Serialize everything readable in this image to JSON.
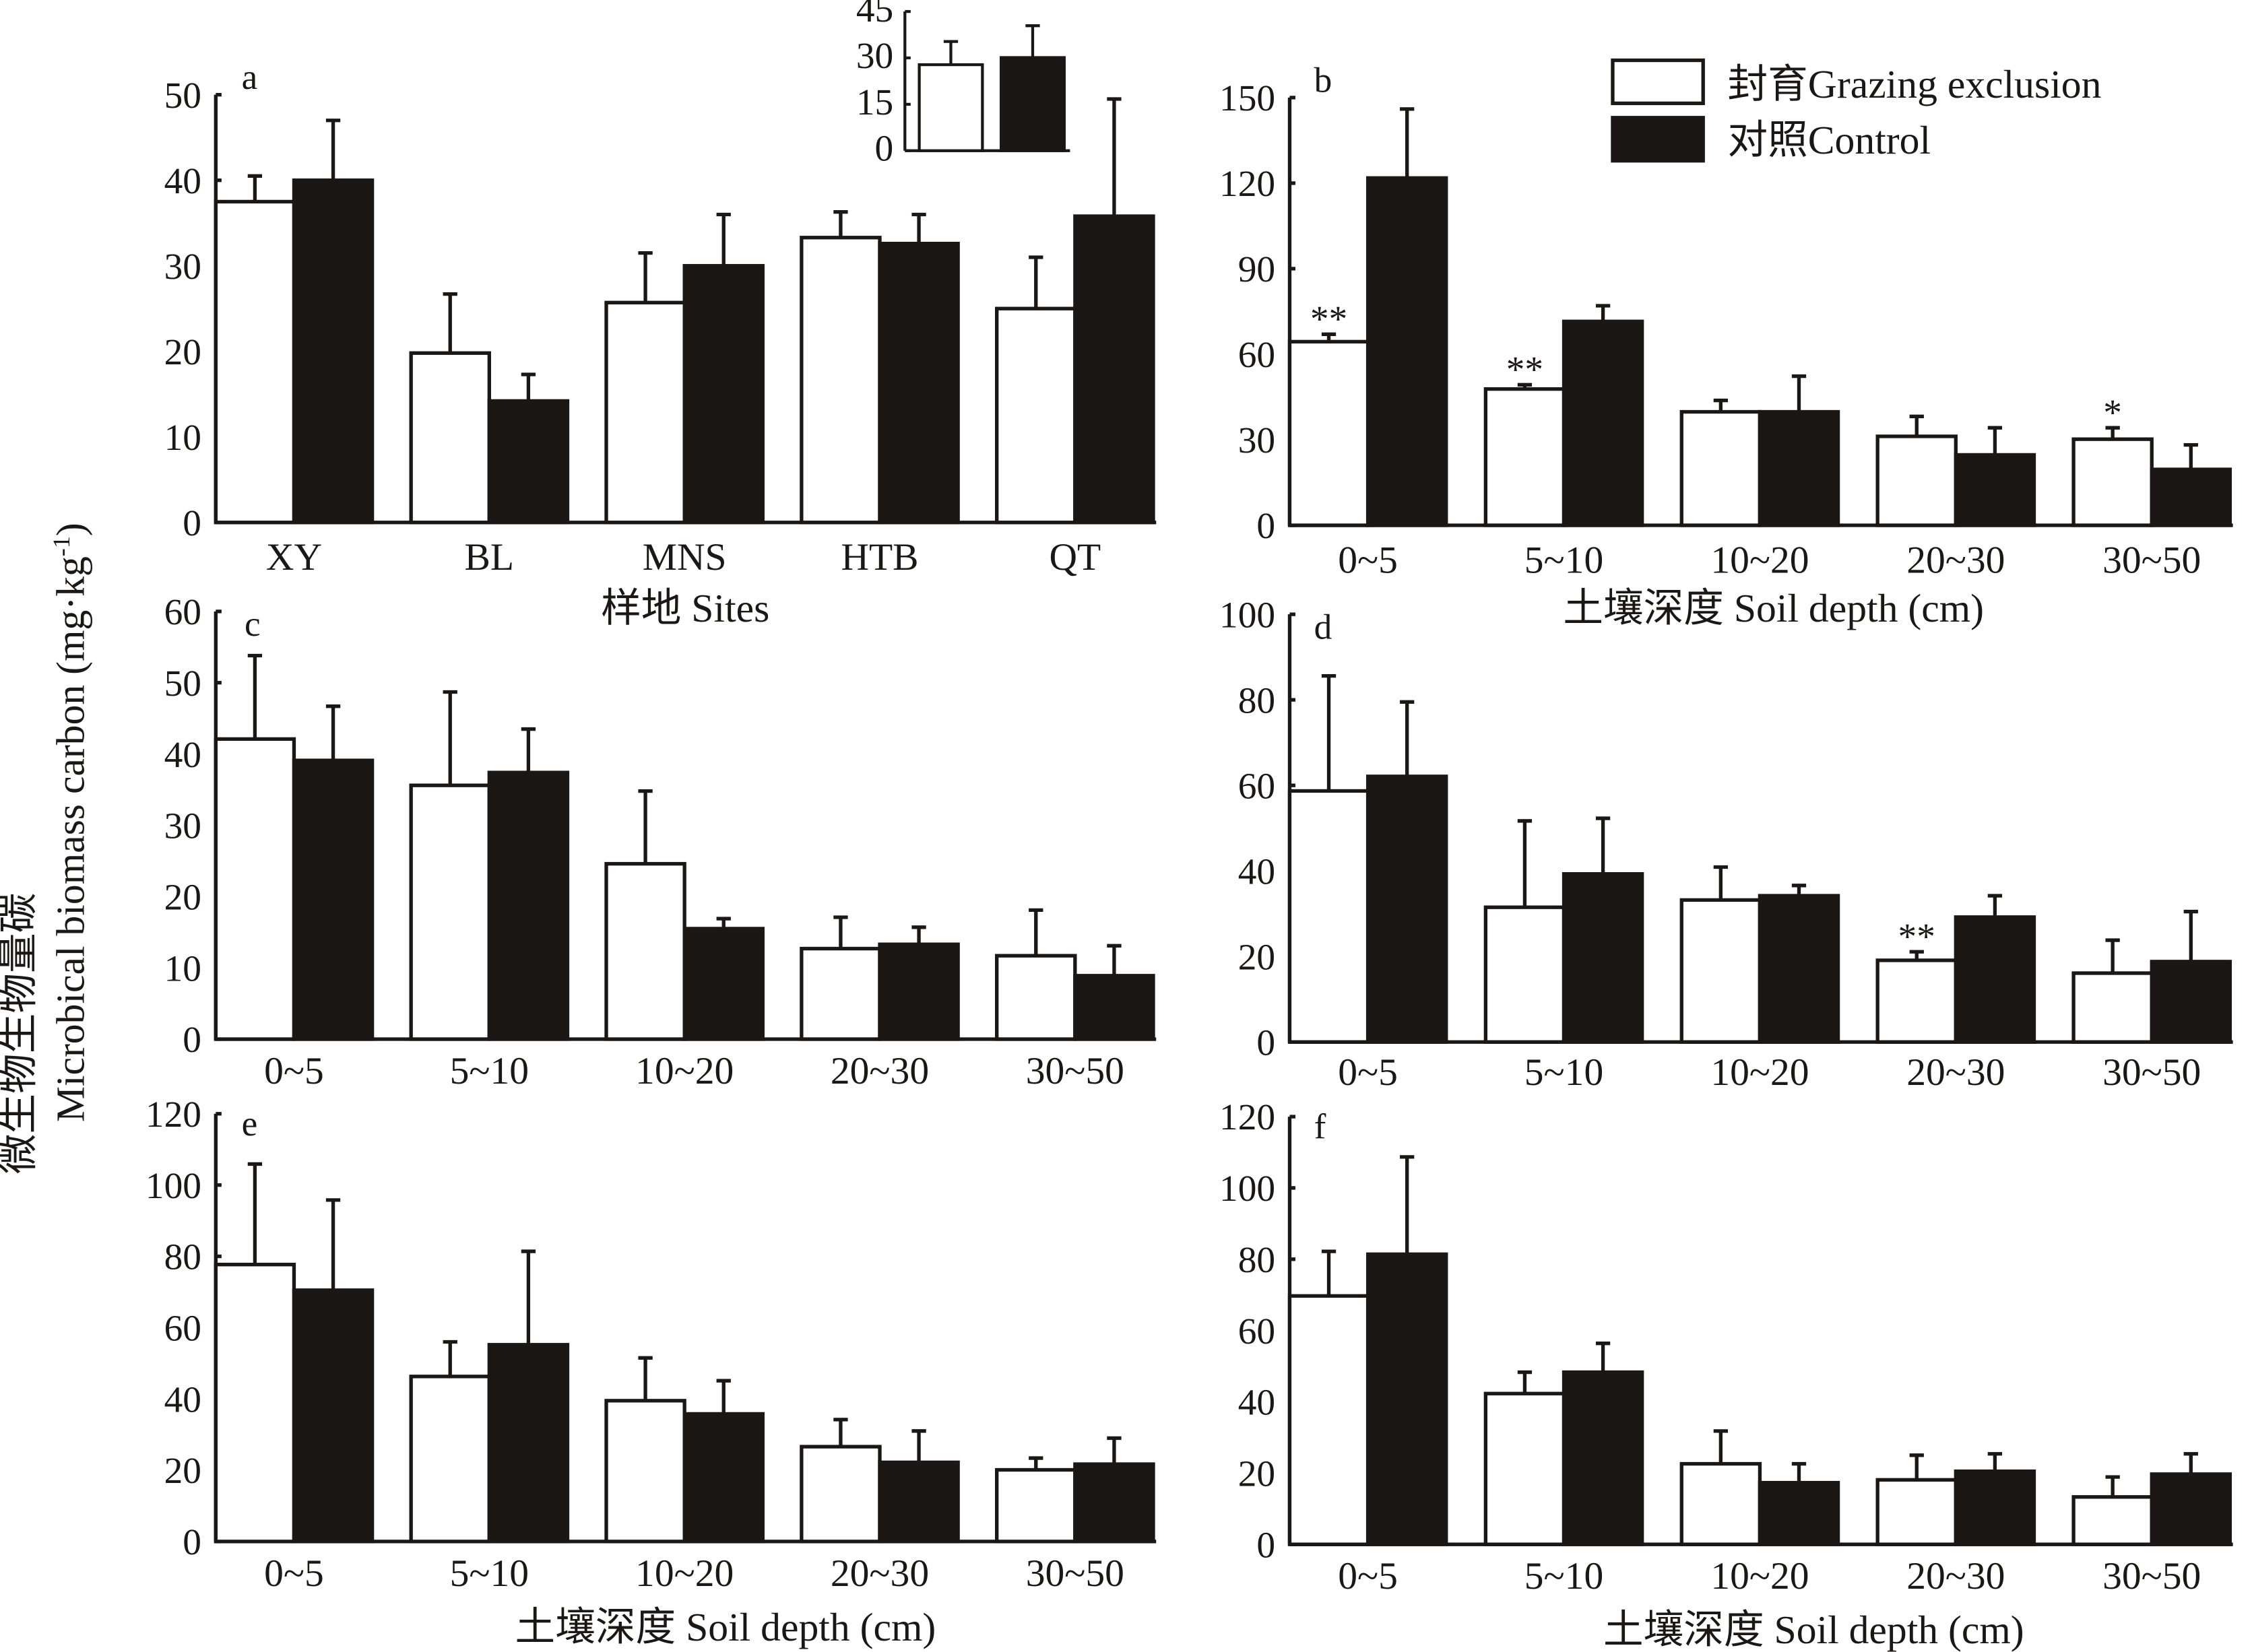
{
  "colors": {
    "grazing_exclusion": "#ffffff",
    "control": "#1a1714",
    "axis": "#1a1714"
  },
  "y_axis_title_cn": "微生物生物量碳",
  "y_axis_title_en": "Microbical biomass carbon (mg·kg",
  "y_axis_title_sup": "-1",
  "y_axis_title_end": ")",
  "legend": [
    {
      "label": "封育Grazing exclusion",
      "color": "#ffffff"
    },
    {
      "label": "对照Control",
      "color": "#1a1714"
    }
  ],
  "chart_data": [
    {
      "id": "a",
      "type": "bar",
      "panel_label": "a",
      "categories": [
        "XY",
        "BL",
        "MNS",
        "HTB",
        "QT"
      ],
      "xlabel": "样地 Sites",
      "ylabel": "",
      "ylim": [
        0,
        50
      ],
      "yticks": [
        0,
        10,
        20,
        30,
        40,
        50
      ],
      "series": [
        {
          "name": "封育Grazing exclusion",
          "values": [
            37.5,
            19.8,
            25.7,
            33.3,
            25.0
          ],
          "error_top": [
            40.5,
            26.7,
            31.5,
            36.3,
            31.0
          ]
        },
        {
          "name": "对照Control",
          "values": [
            40.0,
            14.2,
            30.0,
            32.6,
            35.8
          ],
          "error_top": [
            47.0,
            17.3,
            36.0,
            36.0,
            49.5
          ]
        }
      ],
      "annotations": [
        [
          "",
          "",
          "",
          "",
          ""
        ],
        [
          "",
          "",
          "",
          "",
          ""
        ]
      ]
    },
    {
      "id": "inset",
      "type": "bar",
      "panel_label": "",
      "categories": [
        ""
      ],
      "xlabel": "",
      "ylabel": "",
      "ylim": [
        0,
        45
      ],
      "yticks": [
        0,
        15,
        30,
        45
      ],
      "series": [
        {
          "name": "封育Grazing exclusion",
          "values": [
            27.8
          ],
          "error_top": [
            35.3
          ]
        },
        {
          "name": "对照Control",
          "values": [
            30.1
          ],
          "error_top": [
            40.4
          ]
        }
      ],
      "annotations": [
        [
          ""
        ],
        [
          ""
        ]
      ]
    },
    {
      "id": "b",
      "type": "bar",
      "panel_label": "b",
      "categories": [
        "0~5",
        "5~10",
        "10~20",
        "20~30",
        "30~50"
      ],
      "xlabel": "土壤深度 Soil depth (cm)",
      "ylabel": "",
      "ylim": [
        0,
        150
      ],
      "yticks": [
        0,
        30,
        60,
        90,
        120,
        150
      ],
      "series": [
        {
          "name": "封育Grazing exclusion",
          "values": [
            64.4,
            47.8,
            39.8,
            31.2,
            30.2
          ],
          "error_top": [
            67.0,
            49.3,
            43.8,
            38.2,
            34.2
          ]
        },
        {
          "name": "对照Control",
          "values": [
            121.8,
            71.5,
            39.8,
            24.7,
            19.6
          ],
          "error_top": [
            146.0,
            77.0,
            52.3,
            34.2,
            28.2
          ]
        }
      ],
      "annotations": [
        [
          "**",
          "**",
          "",
          "",
          "*"
        ],
        [
          "",
          "",
          "",
          "",
          ""
        ]
      ]
    },
    {
      "id": "c",
      "type": "bar",
      "panel_label": "c",
      "categories": [
        "0~5",
        "5~10",
        "10~20",
        "20~30",
        "30~50"
      ],
      "xlabel": "",
      "ylabel": "",
      "ylim": [
        0,
        60
      ],
      "yticks": [
        0,
        10,
        20,
        30,
        40,
        50,
        60
      ],
      "series": [
        {
          "name": "封育Grazing exclusion",
          "values": [
            42.1,
            35.6,
            24.6,
            12.7,
            11.7
          ],
          "error_top": [
            53.8,
            48.7,
            34.8,
            17.1,
            18.1
          ]
        },
        {
          "name": "对照Control",
          "values": [
            39.1,
            37.4,
            15.5,
            13.3,
            8.9
          ],
          "error_top": [
            46.7,
            43.5,
            16.9,
            15.7,
            13.1
          ]
        }
      ],
      "annotations": [
        [
          "",
          "",
          "",
          "",
          ""
        ],
        [
          "",
          "",
          "",
          "",
          ""
        ]
      ]
    },
    {
      "id": "d",
      "type": "bar",
      "panel_label": "d",
      "categories": [
        "0~5",
        "5~10",
        "10~20",
        "20~30",
        "30~50"
      ],
      "xlabel": "",
      "ylabel": "",
      "ylim": [
        0,
        100
      ],
      "yticks": [
        0,
        20,
        40,
        60,
        80,
        100
      ],
      "series": [
        {
          "name": "封育Grazing exclusion",
          "values": [
            58.7,
            31.5,
            33.2,
            19.1,
            16.1
          ],
          "error_top": [
            85.6,
            51.7,
            40.9,
            21.1,
            23.8
          ]
        },
        {
          "name": "对照Control",
          "values": [
            62.1,
            39.3,
            34.2,
            29.2,
            18.8
          ],
          "error_top": [
            79.5,
            52.3,
            36.6,
            34.2,
            30.5
          ]
        }
      ],
      "annotations": [
        [
          "",
          "",
          "",
          "**",
          ""
        ],
        [
          "",
          "",
          "",
          "",
          ""
        ]
      ]
    },
    {
      "id": "e",
      "type": "bar",
      "panel_label": "e",
      "categories": [
        "0~5",
        "5~10",
        "10~20",
        "20~30",
        "30~50"
      ],
      "xlabel": "土壤深度 Soil depth (cm)",
      "ylabel": "",
      "ylim": [
        0,
        120
      ],
      "yticks": [
        0,
        20,
        40,
        60,
        80,
        100,
        120
      ],
      "series": [
        {
          "name": "封育Grazing exclusion",
          "values": [
            77.7,
            46.3,
            39.5,
            26.6,
            20.1
          ],
          "error_top": [
            105.9,
            56.0,
            51.5,
            34.2,
            23.4
          ]
        },
        {
          "name": "对照Control",
          "values": [
            70.5,
            55.2,
            35.8,
            22.2,
            21.7
          ],
          "error_top": [
            95.8,
            81.4,
            45.1,
            31.0,
            29.0
          ]
        }
      ],
      "annotations": [
        [
          "",
          "",
          "",
          "",
          ""
        ],
        [
          "",
          "",
          "",
          "",
          ""
        ]
      ]
    },
    {
      "id": "f",
      "type": "bar",
      "panel_label": "f",
      "categories": [
        "0~5",
        "5~10",
        "10~20",
        "20~30",
        "30~50"
      ],
      "xlabel": "土壤深度 Soil depth (cm)",
      "ylabel": "",
      "ylim": [
        0,
        120
      ],
      "yticks": [
        0,
        20,
        40,
        60,
        80,
        100,
        120
      ],
      "series": [
        {
          "name": "封育Grazing exclusion",
          "values": [
            69.7,
            42.3,
            22.6,
            18.1,
            13.3
          ],
          "error_top": [
            82.2,
            48.3,
            31.8,
            25.0,
            18.9
          ]
        },
        {
          "name": "对照Control",
          "values": [
            81.4,
            48.3,
            17.3,
            20.5,
            19.7
          ],
          "error_top": [
            108.7,
            56.4,
            22.6,
            25.4,
            25.4
          ]
        }
      ],
      "annotations": [
        [
          "",
          "",
          "",
          "",
          ""
        ],
        [
          "",
          "",
          "",
          "",
          ""
        ]
      ]
    }
  ]
}
